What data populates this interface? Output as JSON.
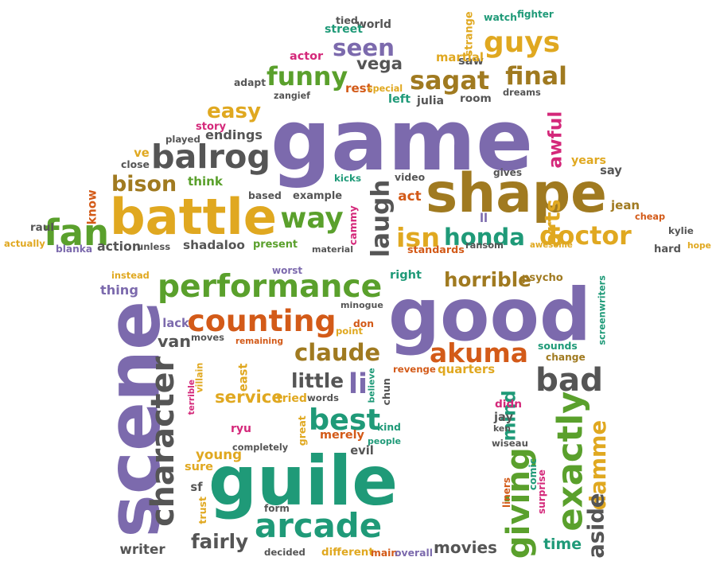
{
  "palette": {
    "purple": "#7c6aad",
    "gold": "#e0a820",
    "green": "#5aa02c",
    "gray": "#555555",
    "orange": "#d35a18",
    "teal": "#1f9a78",
    "brown": "#a07a20",
    "pink": "#d4287a"
  },
  "words": [
    {
      "t": "game",
      "c": "purple",
      "v": true
    },
    {
      "t": "good",
      "c": "purple",
      "v": true
    },
    {
      "t": "guile",
      "c": "teal",
      "v": true
    },
    {
      "t": "scene",
      "c": "purple",
      "v": false
    },
    {
      "t": "shape",
      "c": "brown",
      "v": true
    },
    {
      "t": "battle",
      "c": "gold",
      "v": true
    },
    {
      "t": "performance",
      "c": "green",
      "v": true
    },
    {
      "t": "counting",
      "c": "orange",
      "v": true
    },
    {
      "t": "arcade",
      "c": "teal",
      "v": true
    },
    {
      "t": "seen",
      "c": "purple",
      "v": true
    },
    {
      "t": "guys",
      "c": "gold",
      "v": true
    },
    {
      "t": "funny",
      "c": "green",
      "v": true
    },
    {
      "t": "sagat",
      "c": "brown",
      "v": true
    },
    {
      "t": "vega",
      "c": "gray",
      "v": true
    },
    {
      "t": "final",
      "c": "brown",
      "v": true
    },
    {
      "t": "easy",
      "c": "gold",
      "v": true
    },
    {
      "t": "balrog",
      "c": "gray",
      "v": true
    },
    {
      "t": "endings",
      "c": "gray",
      "v": true
    },
    {
      "t": "bison",
      "c": "brown",
      "v": true
    },
    {
      "t": "fan",
      "c": "green",
      "v": true
    },
    {
      "t": "way",
      "c": "green",
      "v": true
    },
    {
      "t": "laugh",
      "c": "gray",
      "v": false
    },
    {
      "t": "isn",
      "c": "gold",
      "v": true
    },
    {
      "t": "honda",
      "c": "teal",
      "v": true
    },
    {
      "t": "doctor",
      "c": "gold",
      "v": true
    },
    {
      "t": "awful",
      "c": "pink",
      "v": false
    },
    {
      "t": "character",
      "c": "gray",
      "v": false
    },
    {
      "t": "claude",
      "c": "brown",
      "v": true
    },
    {
      "t": "akuma",
      "c": "orange",
      "v": true
    },
    {
      "t": "horrible",
      "c": "brown",
      "v": true
    },
    {
      "t": "best",
      "c": "teal",
      "v": true
    },
    {
      "t": "bad",
      "c": "gray",
      "v": true
    },
    {
      "t": "exactly",
      "c": "green",
      "v": false
    },
    {
      "t": "mind",
      "c": "teal",
      "v": false
    },
    {
      "t": "giving",
      "c": "green",
      "v": false
    },
    {
      "t": "damme",
      "c": "gold",
      "v": false
    },
    {
      "t": "aside",
      "c": "gray",
      "v": false
    },
    {
      "t": "movies",
      "c": "gray",
      "v": true
    },
    {
      "t": "fairly",
      "c": "gray",
      "v": true
    },
    {
      "t": "little",
      "c": "gray",
      "v": true
    },
    {
      "t": "li",
      "c": "purple",
      "v": true
    },
    {
      "t": "van",
      "c": "gray",
      "v": true
    },
    {
      "t": "service",
      "c": "gold",
      "v": true
    },
    {
      "t": "young",
      "c": "gold",
      "v": true
    },
    {
      "t": "time",
      "c": "teal",
      "v": true
    },
    {
      "t": "arts",
      "c": "gold",
      "v": false
    },
    {
      "t": "present",
      "c": "green",
      "v": true
    },
    {
      "t": "shadaloo",
      "c": "gray",
      "v": true
    },
    {
      "t": "action",
      "c": "gray",
      "v": true
    },
    {
      "t": "based",
      "c": "gray",
      "v": true
    },
    {
      "t": "example",
      "c": "gray",
      "v": true
    },
    {
      "t": "think",
      "c": "green",
      "v": true
    },
    {
      "t": "played",
      "c": "gray",
      "v": true
    },
    {
      "t": "story",
      "c": "pink",
      "v": true
    },
    {
      "t": "close",
      "c": "gray",
      "v": true
    },
    {
      "t": "ve",
      "c": "gold",
      "v": true
    },
    {
      "t": "know",
      "c": "orange",
      "v": false
    },
    {
      "t": "raul",
      "c": "gray",
      "v": true
    },
    {
      "t": "actually",
      "c": "gold",
      "v": true
    },
    {
      "t": "blanka",
      "c": "purple",
      "v": true
    },
    {
      "t": "unless",
      "c": "gray",
      "v": true
    },
    {
      "t": "material",
      "c": "gray",
      "v": true
    },
    {
      "t": "standards",
      "c": "orange",
      "v": true
    },
    {
      "t": "ransom",
      "c": "gray",
      "v": true
    },
    {
      "t": "awesome",
      "c": "gold",
      "v": true
    },
    {
      "t": "hard",
      "c": "gray",
      "v": true
    },
    {
      "t": "hope",
      "c": "gold",
      "v": true
    },
    {
      "t": "kylie",
      "c": "gray",
      "v": true
    },
    {
      "t": "cheap",
      "c": "orange",
      "v": true
    },
    {
      "t": "jean",
      "c": "brown",
      "v": true
    },
    {
      "t": "say",
      "c": "gray",
      "v": true
    },
    {
      "t": "years",
      "c": "gold",
      "v": true
    },
    {
      "t": "gives",
      "c": "gray",
      "v": true
    },
    {
      "t": "video",
      "c": "gray",
      "v": true
    },
    {
      "t": "act",
      "c": "orange",
      "v": true
    },
    {
      "t": "kicks",
      "c": "teal",
      "v": true
    },
    {
      "t": "cammy",
      "c": "pink",
      "v": false
    },
    {
      "t": "ll",
      "c": "purple",
      "v": true
    },
    {
      "t": "tied",
      "c": "gray",
      "v": true
    },
    {
      "t": "world",
      "c": "gray",
      "v": true
    },
    {
      "t": "street",
      "c": "teal",
      "v": true
    },
    {
      "t": "watch",
      "c": "teal",
      "v": true
    },
    {
      "t": "fighter",
      "c": "teal",
      "v": true
    },
    {
      "t": "strange",
      "c": "gold",
      "v": false
    },
    {
      "t": "saw",
      "c": "gray",
      "v": true
    },
    {
      "t": "martial",
      "c": "gold",
      "v": true
    },
    {
      "t": "actor",
      "c": "pink",
      "v": true
    },
    {
      "t": "adapt",
      "c": "gray",
      "v": true
    },
    {
      "t": "rest",
      "c": "orange",
      "v": true
    },
    {
      "t": "special",
      "c": "gold",
      "v": true
    },
    {
      "t": "zangief",
      "c": "gray",
      "v": true
    },
    {
      "t": "left",
      "c": "teal",
      "v": true
    },
    {
      "t": "julia",
      "c": "gray",
      "v": true
    },
    {
      "t": "room",
      "c": "gray",
      "v": true
    },
    {
      "t": "dreams",
      "c": "gray",
      "v": true
    },
    {
      "t": "instead",
      "c": "gold",
      "v": true
    },
    {
      "t": "thing",
      "c": "purple",
      "v": true
    },
    {
      "t": "worst",
      "c": "purple",
      "v": true
    },
    {
      "t": "right",
      "c": "teal",
      "v": true
    },
    {
      "t": "psycho",
      "c": "brown",
      "v": true
    },
    {
      "t": "minogue",
      "c": "gray",
      "v": true
    },
    {
      "t": "lack",
      "c": "purple",
      "v": true
    },
    {
      "t": "moves",
      "c": "gray",
      "v": true
    },
    {
      "t": "remaining",
      "c": "orange",
      "v": true
    },
    {
      "t": "don",
      "c": "orange",
      "v": true
    },
    {
      "t": "point",
      "c": "gold",
      "v": true
    },
    {
      "t": "sounds",
      "c": "teal",
      "v": true
    },
    {
      "t": "change",
      "c": "brown",
      "v": true
    },
    {
      "t": "screenwriters",
      "c": "teal",
      "v": false
    },
    {
      "t": "east",
      "c": "gold",
      "v": false
    },
    {
      "t": "terrible",
      "c": "pink",
      "v": false
    },
    {
      "t": "villain",
      "c": "gold",
      "v": false
    },
    {
      "t": "tried",
      "c": "gold",
      "v": true
    },
    {
      "t": "words",
      "c": "gray",
      "v": true
    },
    {
      "t": "believe",
      "c": "teal",
      "v": false
    },
    {
      "t": "chun",
      "c": "gray",
      "v": false
    },
    {
      "t": "revenge",
      "c": "orange",
      "v": true
    },
    {
      "t": "quarters",
      "c": "gold",
      "v": true
    },
    {
      "t": "ryu",
      "c": "pink",
      "v": true
    },
    {
      "t": "completely",
      "c": "gray",
      "v": true
    },
    {
      "t": "great",
      "c": "gold",
      "v": false
    },
    {
      "t": "merely",
      "c": "orange",
      "v": true
    },
    {
      "t": "kind",
      "c": "teal",
      "v": true
    },
    {
      "t": "people",
      "c": "teal",
      "v": true
    },
    {
      "t": "evil",
      "c": "gray",
      "v": true
    },
    {
      "t": "didn",
      "c": "pink",
      "v": true
    },
    {
      "t": "jay",
      "c": "gray",
      "v": true
    },
    {
      "t": "ken",
      "c": "gray",
      "v": true
    },
    {
      "t": "wiseau",
      "c": "gray",
      "v": true
    },
    {
      "t": "sure",
      "c": "gold",
      "v": true
    },
    {
      "t": "sf",
      "c": "gray",
      "v": true
    },
    {
      "t": "trust",
      "c": "gold",
      "v": false
    },
    {
      "t": "form",
      "c": "gray",
      "v": true
    },
    {
      "t": "liners",
      "c": "orange",
      "v": false
    },
    {
      "t": "surprise",
      "c": "pink",
      "v": false
    },
    {
      "t": "comic",
      "c": "teal",
      "v": false
    },
    {
      "t": "writer",
      "c": "gray",
      "v": true
    },
    {
      "t": "decided",
      "c": "gray",
      "v": true
    },
    {
      "t": "different",
      "c": "gold",
      "v": true
    },
    {
      "t": "main",
      "c": "orange",
      "v": true
    },
    {
      "t": "overall",
      "c": "purple",
      "v": true
    }
  ]
}
